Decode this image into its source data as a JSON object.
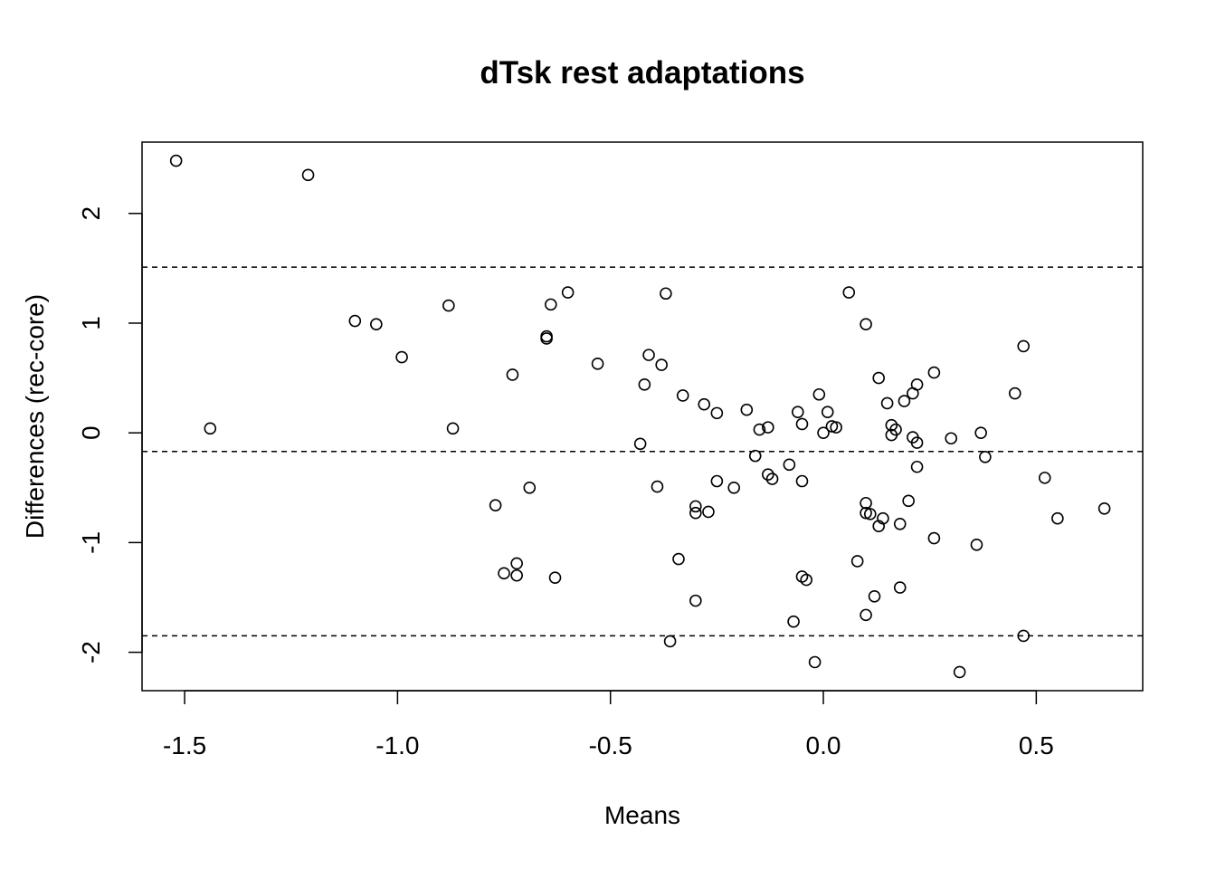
{
  "chart_data": {
    "type": "scatter",
    "title": "dTsk rest adaptations",
    "xlabel": "Means",
    "ylabel": "Differences (rec-core)",
    "xlim": [
      -1.6,
      0.75
    ],
    "ylim": [
      -2.35,
      2.65
    ],
    "x_ticks": [
      -1.5,
      -1.0,
      -0.5,
      0.0,
      0.5
    ],
    "x_tick_labels": [
      "-1.5",
      "-1.0",
      "-0.5",
      "0.0",
      "0.5"
    ],
    "y_ticks": [
      -2,
      -1,
      0,
      1,
      2
    ],
    "y_tick_labels": [
      "-2",
      "-1",
      "0",
      "1",
      "2"
    ],
    "grid": false,
    "reference_lines": [
      1.51,
      -0.17,
      -1.85
    ],
    "points": [
      [
        -1.52,
        2.48
      ],
      [
        -1.21,
        2.35
      ],
      [
        -1.44,
        0.04
      ],
      [
        -1.1,
        1.02
      ],
      [
        -1.05,
        0.99
      ],
      [
        -0.99,
        0.69
      ],
      [
        -0.88,
        1.16
      ],
      [
        -0.87,
        0.04
      ],
      [
        -0.77,
        -0.66
      ],
      [
        -0.75,
        -1.28
      ],
      [
        -0.73,
        0.53
      ],
      [
        -0.72,
        -1.19
      ],
      [
        -0.72,
        -1.3
      ],
      [
        -0.69,
        -0.5
      ],
      [
        -0.65,
        0.86
      ],
      [
        -0.65,
        0.88
      ],
      [
        -0.64,
        1.17
      ],
      [
        -0.63,
        -1.32
      ],
      [
        -0.6,
        1.28
      ],
      [
        -0.53,
        0.63
      ],
      [
        -0.43,
        -0.1
      ],
      [
        -0.42,
        0.44
      ],
      [
        -0.41,
        0.71
      ],
      [
        -0.39,
        -0.49
      ],
      [
        -0.38,
        0.62
      ],
      [
        -0.37,
        1.27
      ],
      [
        -0.36,
        -1.9
      ],
      [
        -0.34,
        -1.15
      ],
      [
        -0.33,
        0.34
      ],
      [
        -0.3,
        -0.67
      ],
      [
        -0.3,
        -0.73
      ],
      [
        -0.3,
        -1.53
      ],
      [
        -0.28,
        0.26
      ],
      [
        -0.27,
        -0.72
      ],
      [
        -0.25,
        -0.44
      ],
      [
        -0.25,
        0.18
      ],
      [
        -0.21,
        -0.5
      ],
      [
        -0.18,
        0.21
      ],
      [
        -0.16,
        -0.21
      ],
      [
        -0.15,
        0.03
      ],
      [
        -0.13,
        -0.38
      ],
      [
        -0.13,
        0.05
      ],
      [
        -0.12,
        -0.42
      ],
      [
        -0.08,
        -0.29
      ],
      [
        -0.07,
        -1.72
      ],
      [
        -0.06,
        0.19
      ],
      [
        -0.05,
        0.08
      ],
      [
        -0.05,
        -0.44
      ],
      [
        -0.05,
        -1.31
      ],
      [
        -0.04,
        -1.34
      ],
      [
        -0.02,
        -2.09
      ],
      [
        -0.01,
        0.35
      ],
      [
        0.0,
        0.0
      ],
      [
        0.01,
        0.19
      ],
      [
        0.02,
        0.06
      ],
      [
        0.03,
        0.05
      ],
      [
        0.06,
        1.28
      ],
      [
        0.08,
        -1.17
      ],
      [
        0.1,
        0.99
      ],
      [
        0.1,
        -0.64
      ],
      [
        0.1,
        -0.73
      ],
      [
        0.1,
        -1.66
      ],
      [
        0.11,
        -0.74
      ],
      [
        0.12,
        -1.49
      ],
      [
        0.13,
        -0.85
      ],
      [
        0.13,
        0.5
      ],
      [
        0.14,
        -0.78
      ],
      [
        0.15,
        0.27
      ],
      [
        0.16,
        0.07
      ],
      [
        0.16,
        -0.02
      ],
      [
        0.17,
        0.03
      ],
      [
        0.18,
        -0.83
      ],
      [
        0.18,
        -1.41
      ],
      [
        0.19,
        0.29
      ],
      [
        0.2,
        -0.62
      ],
      [
        0.21,
        0.36
      ],
      [
        0.21,
        -0.04
      ],
      [
        0.22,
        -0.31
      ],
      [
        0.22,
        0.44
      ],
      [
        0.22,
        -0.09
      ],
      [
        0.26,
        0.55
      ],
      [
        0.26,
        -0.96
      ],
      [
        0.3,
        -0.05
      ],
      [
        0.32,
        -2.18
      ],
      [
        0.36,
        -1.02
      ],
      [
        0.37,
        0.0
      ],
      [
        0.38,
        -0.22
      ],
      [
        0.45,
        0.36
      ],
      [
        0.47,
        0.79
      ],
      [
        0.47,
        -1.85
      ],
      [
        0.52,
        -0.41
      ],
      [
        0.55,
        -0.78
      ],
      [
        0.66,
        -0.69
      ]
    ]
  }
}
